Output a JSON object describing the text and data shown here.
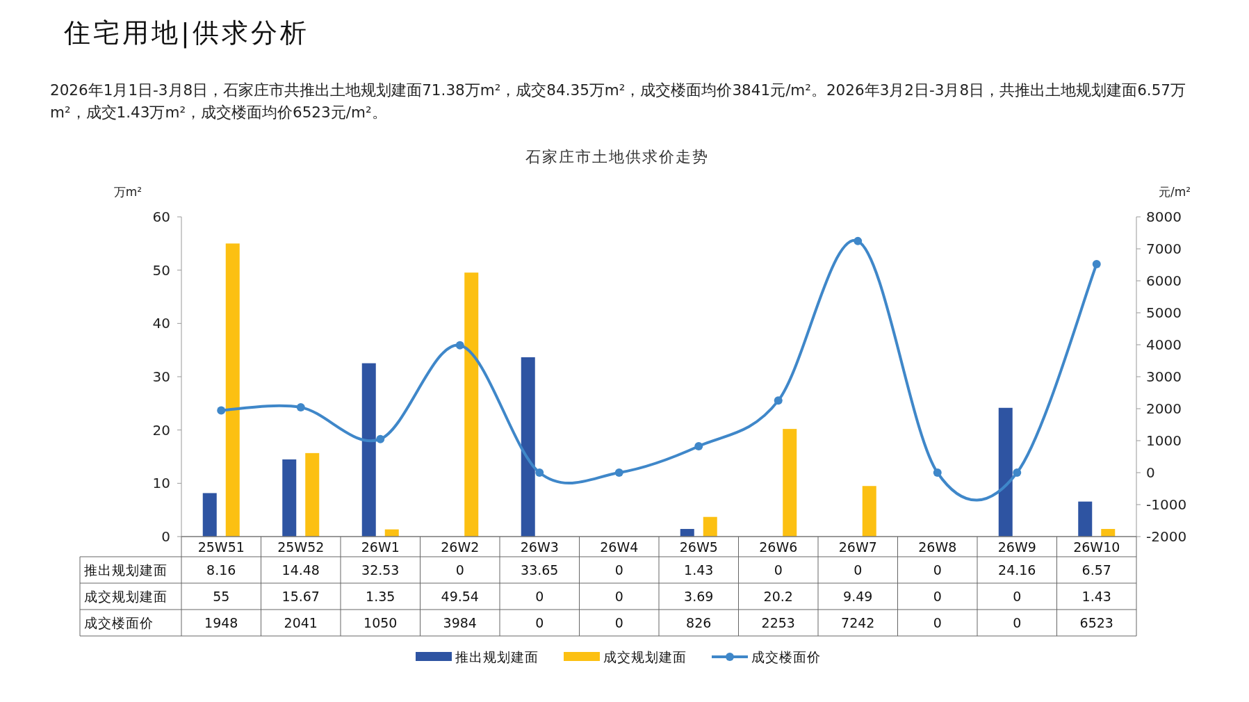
{
  "chart_data": {
    "type": "bar",
    "title": "石家庄市土地供求价走势",
    "annotations": [
      "住宅用地|供求分析",
      "2026年1月1日-3月8日，石家庄市共推出土地规划建面71.38万m²，成交84.35万m²，成交楼面均价3841元/m²。2026年3月2日-3月8日，共推出土地规划建面6.57万m²，成交1.43万m²，成交楼面均价6523元/m²。"
    ],
    "ylabel": "万m²",
    "y2label": "元/m²",
    "categories": [
      "25W51",
      "25W52",
      "26W1",
      "26W2",
      "26W3",
      "26W4",
      "26W5",
      "26W6",
      "26W7",
      "26W8",
      "26W9",
      "26W10"
    ],
    "series": [
      {
        "name": "推出规划建面",
        "color": "#2e54a2",
        "values": [
          8.16,
          14.48,
          32.53,
          0,
          33.65,
          0,
          1.43,
          0,
          0,
          0,
          24.16,
          6.57
        ]
      },
      {
        "name": "成交规划建面",
        "color": "#fcc012",
        "values": [
          55,
          15.67,
          1.35,
          49.54,
          0,
          0,
          3.69,
          20.2,
          9.49,
          0,
          0,
          1.43
        ]
      },
      {
        "name": "成交楼面价",
        "type": "line",
        "axis": "y2",
        "color": "#3f87c9",
        "marker": "circle",
        "values": [
          1948,
          2041,
          1050,
          3984,
          0,
          0,
          826,
          2253,
          7242,
          0,
          0,
          6523
        ]
      }
    ],
    "ylim": [
      0,
      60
    ],
    "yticks": [
      0,
      10,
      20,
      30,
      40,
      50,
      60
    ],
    "y2lim": [
      -2000,
      8000
    ],
    "y2ticks": [
      -2000,
      -1000,
      0,
      1000,
      2000,
      3000,
      4000,
      5000,
      6000,
      7000,
      8000
    ],
    "data_labels": true,
    "legend": "bottom"
  }
}
